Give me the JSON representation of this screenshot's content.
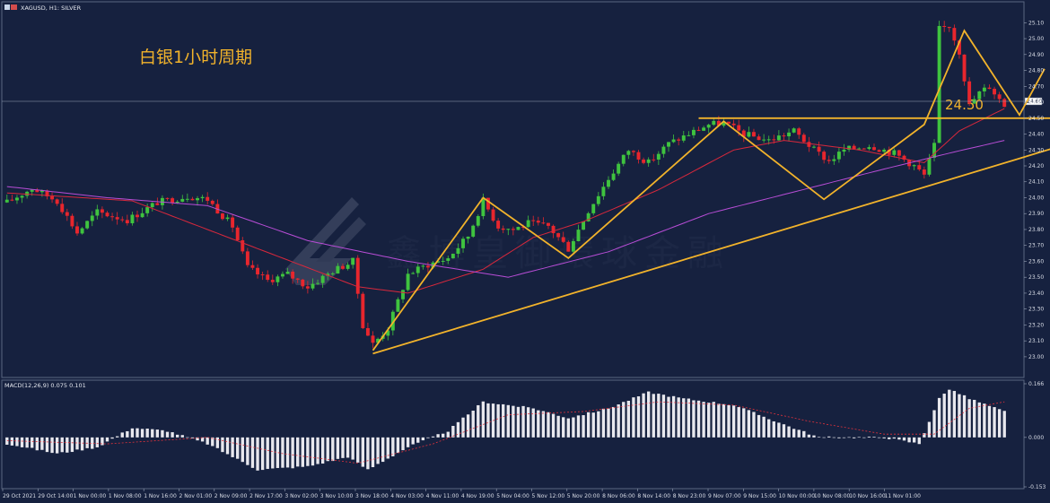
{
  "window": {
    "title": "XAGUSD, H1: SILVER"
  },
  "colors": {
    "background": "#16213f",
    "up": "#3fc33f",
    "down": "#e8262d",
    "ma_fast": "#d8283c",
    "ma_slow": "#b84dd6",
    "annotation": "#f2b32b",
    "macd_bar": "#e8e8ee",
    "macd_signal": "#e2323c"
  },
  "annotations": {
    "title": "白银1小时周期",
    "level_label": "24.50"
  },
  "watermark": {
    "text": "鑫博皇御環球金融",
    "icon": "logo-mark-icon"
  },
  "current_price_label": "24.60",
  "chart_data": [
    {
      "type": "line",
      "title": "XAGUSD, H1: SILVER",
      "price_ticks": [
        "25.10",
        "25.00",
        "24.90",
        "24.80",
        "24.70",
        "24.60",
        "24.50",
        "24.40",
        "24.30",
        "24.20",
        "24.10",
        "24.00",
        "23.90",
        "23.80",
        "23.70",
        "23.60",
        "23.50",
        "23.40",
        "23.30",
        "23.20",
        "23.10",
        "23.00"
      ],
      "time_labels": [
        "29 Oct 2021",
        "29 Oct 14:00",
        "1 Nov 00:00",
        "1 Nov 08:00",
        "1 Nov 16:00",
        "2 Nov 01:00",
        "2 Nov 09:00",
        "2 Nov 17:00",
        "3 Nov 02:00",
        "3 Nov 10:00",
        "3 Nov 18:00",
        "4 Nov 03:00",
        "4 Nov 11:00",
        "4 Nov 19:00",
        "5 Nov 04:00",
        "5 Nov 12:00",
        "5 Nov 20:00",
        "8 Nov 06:00",
        "8 Nov 14:00",
        "8 Nov 23:00",
        "9 Nov 07:00",
        "9 Nov 15:00",
        "10 Nov 00:00",
        "10 Nov 08:00",
        "10 Nov 16:00",
        "11 Nov 01:00"
      ],
      "ylim": [
        22.96,
        25.13
      ],
      "price_path": [
        [
          0,
          23.97
        ],
        [
          5,
          24.06
        ],
        [
          10,
          23.98
        ],
        [
          14,
          23.78
        ],
        [
          18,
          23.91
        ],
        [
          24,
          23.86
        ],
        [
          30,
          23.97
        ],
        [
          36,
          24.01
        ],
        [
          40,
          23.99
        ],
        [
          45,
          23.82
        ],
        [
          48,
          23.56
        ],
        [
          52,
          23.48
        ],
        [
          56,
          23.52
        ],
        [
          60,
          23.44
        ],
        [
          65,
          23.54
        ],
        [
          69,
          23.6
        ],
        [
          71,
          23.2
        ],
        [
          73,
          23.08
        ],
        [
          76,
          23.18
        ],
        [
          80,
          23.52
        ],
        [
          84,
          23.58
        ],
        [
          88,
          23.62
        ],
        [
          92,
          23.76
        ],
        [
          95,
          23.98
        ],
        [
          98,
          23.82
        ],
        [
          101,
          23.8
        ],
        [
          104,
          23.84
        ],
        [
          108,
          23.82
        ],
        [
          112,
          23.68
        ],
        [
          116,
          23.92
        ],
        [
          120,
          24.12
        ],
        [
          124,
          24.3
        ],
        [
          128,
          24.22
        ],
        [
          132,
          24.34
        ],
        [
          136,
          24.4
        ],
        [
          140,
          24.46
        ],
        [
          143,
          24.47
        ],
        [
          147,
          24.4
        ],
        [
          152,
          24.36
        ],
        [
          157,
          24.42
        ],
        [
          161,
          24.3
        ],
        [
          164,
          24.23
        ],
        [
          167,
          24.3
        ],
        [
          172,
          24.33
        ],
        [
          177,
          24.28
        ],
        [
          181,
          24.2
        ],
        [
          183,
          24.14
        ],
        [
          185,
          24.33
        ],
        [
          186,
          25.06
        ],
        [
          188,
          25.08
        ],
        [
          190,
          24.92
        ],
        [
          192,
          24.58
        ],
        [
          194,
          24.66
        ],
        [
          196,
          24.7
        ],
        [
          198,
          24.62
        ],
        [
          199,
          24.58
        ]
      ],
      "series": [
        {
          "name": "",
          "values": [
            [
              0,
              24.03
            ],
            [
              25,
              23.98
            ],
            [
              50,
              23.68
            ],
            [
              70,
              23.44
            ],
            [
              80,
              23.4
            ],
            [
              95,
              23.55
            ],
            [
              105,
              23.75
            ],
            [
              115,
              23.85
            ],
            [
              130,
              24.05
            ],
            [
              145,
              24.3
            ],
            [
              155,
              24.36
            ],
            [
              170,
              24.3
            ],
            [
              183,
              24.22
            ],
            [
              190,
              24.42
            ],
            [
              199,
              24.56
            ]
          ]
        },
        {
          "name": "",
          "values": [
            [
              0,
              24.07
            ],
            [
              20,
              24.0
            ],
            [
              40,
              23.95
            ],
            [
              60,
              23.73
            ],
            [
              80,
              23.6
            ],
            [
              100,
              23.5
            ],
            [
              120,
              23.66
            ],
            [
              140,
              23.9
            ],
            [
              160,
              24.06
            ],
            [
              175,
              24.18
            ],
            [
              188,
              24.28
            ],
            [
              199,
              24.36
            ]
          ]
        }
      ],
      "patterns": [
        {
          "values": [
            [
              73,
              23.04
            ],
            [
              95,
              24.0
            ],
            [
              112,
              23.62
            ],
            [
              143,
              24.48
            ],
            [
              163,
              23.99
            ],
            [
              183,
              24.46
            ],
            [
              191,
              25.05
            ],
            [
              202,
              24.52
            ],
            [
              207,
              24.81
            ]
          ]
        },
        {
          "values": [
            [
              73,
              23.02
            ],
            [
              215,
              24.37
            ]
          ]
        },
        {
          "values": [
            [
              138,
              24.5
            ],
            [
              217,
              24.5
            ]
          ]
        }
      ]
    },
    {
      "type": "bar",
      "title": "MACD(12,26,9) 0.075 0.101",
      "yticks": [
        "0.166",
        "0.000",
        "-0.153"
      ],
      "ylim": [
        -0.153,
        0.166
      ],
      "macd_path": [
        [
          0,
          -0.02
        ],
        [
          10,
          -0.05
        ],
        [
          18,
          -0.03
        ],
        [
          25,
          0.03
        ],
        [
          32,
          0.02
        ],
        [
          40,
          -0.02
        ],
        [
          50,
          -0.1
        ],
        [
          60,
          -0.09
        ],
        [
          68,
          -0.06
        ],
        [
          72,
          -0.1
        ],
        [
          80,
          -0.03
        ],
        [
          88,
          0.02
        ],
        [
          95,
          0.11
        ],
        [
          105,
          0.09
        ],
        [
          112,
          0.06
        ],
        [
          120,
          0.09
        ],
        [
          128,
          0.14
        ],
        [
          135,
          0.12
        ],
        [
          145,
          0.1
        ],
        [
          155,
          0.04
        ],
        [
          162,
          0.0
        ],
        [
          175,
          0.0
        ],
        [
          182,
          -0.02
        ],
        [
          186,
          0.12
        ],
        [
          188,
          0.15
        ],
        [
          192,
          0.12
        ],
        [
          199,
          0.08
        ]
      ],
      "signal_path": [
        [
          0,
          -0.01
        ],
        [
          20,
          -0.02
        ],
        [
          40,
          0.0
        ],
        [
          55,
          -0.05
        ],
        [
          70,
          -0.08
        ],
        [
          85,
          -0.02
        ],
        [
          100,
          0.07
        ],
        [
          115,
          0.08
        ],
        [
          130,
          0.11
        ],
        [
          145,
          0.1
        ],
        [
          160,
          0.05
        ],
        [
          175,
          0.01
        ],
        [
          185,
          0.01
        ],
        [
          192,
          0.09
        ],
        [
          199,
          0.11
        ]
      ]
    }
  ]
}
